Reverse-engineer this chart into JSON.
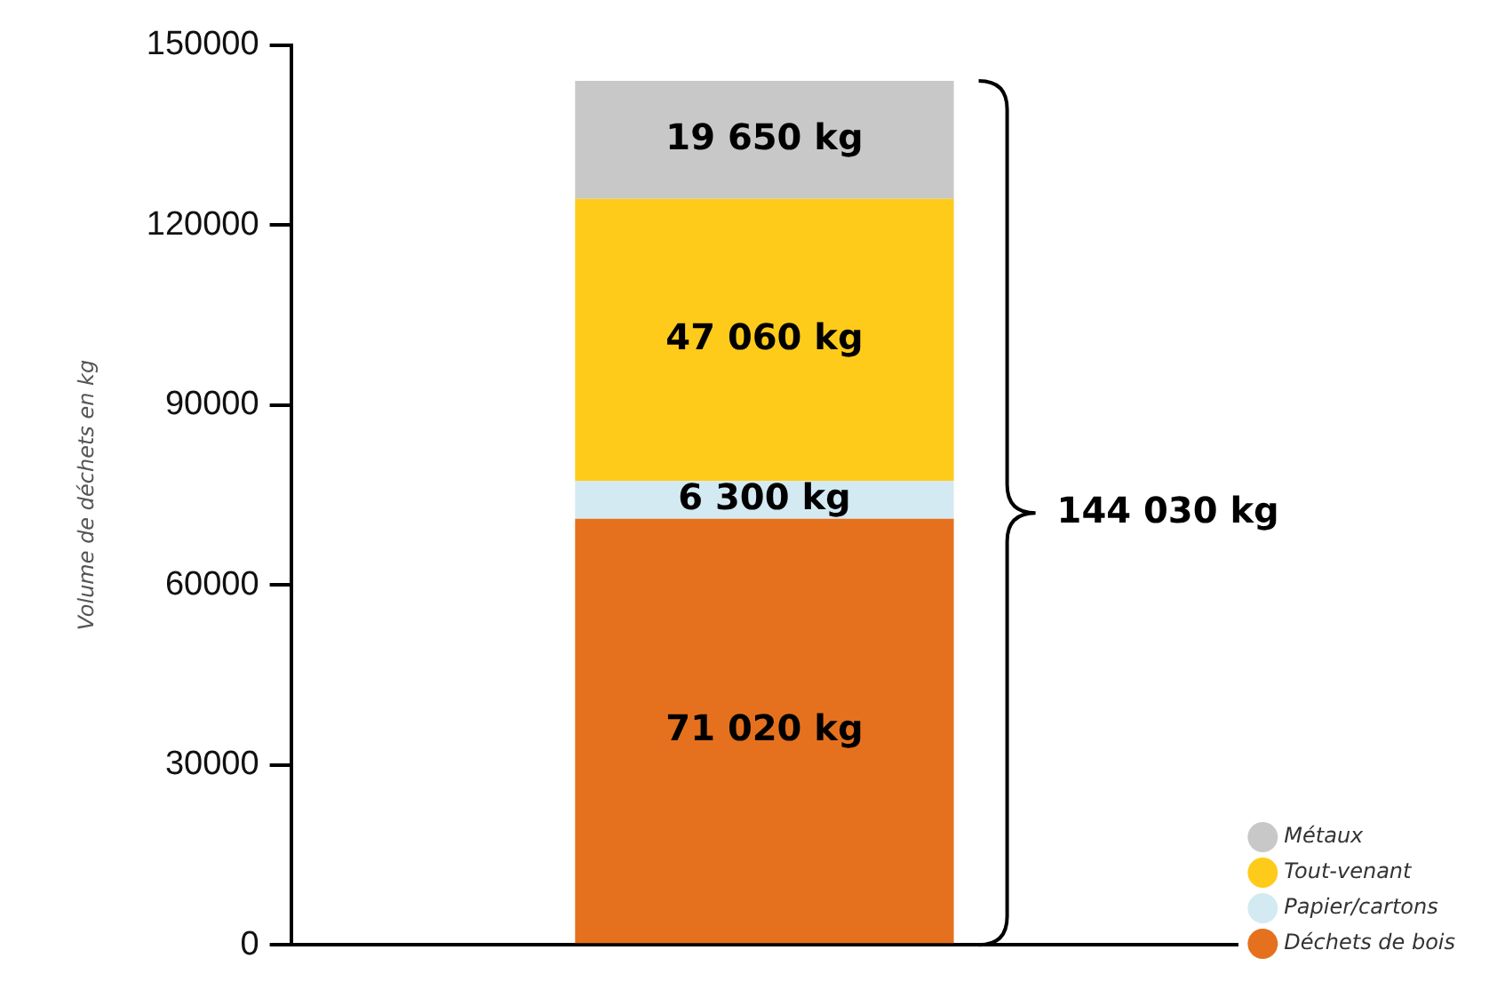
{
  "chart_data": {
    "type": "bar",
    "ylabel": "Volume de déchets en kg",
    "categories": [
      null
    ],
    "stacked": true,
    "series": [
      {
        "name": "Déchets de bois",
        "color": "#e5711e",
        "values": [
          71020
        ],
        "value_labels": [
          "71 020 kg"
        ]
      },
      {
        "name": "Papier/cartons",
        "color": "#d4eaf2",
        "values": [
          6300
        ],
        "value_labels": [
          "6 300 kg"
        ]
      },
      {
        "name": "Tout-venant",
        "color": "#ffcb1a",
        "values": [
          47060
        ],
        "value_labels": [
          "47 060 kg"
        ]
      },
      {
        "name": "Métaux",
        "color": "#c8c8c8",
        "values": [
          19650
        ],
        "value_labels": [
          "19 650 kg"
        ]
      }
    ],
    "totals": [
      "144 030 kg"
    ],
    "ylim": [
      0,
      150000
    ],
    "yticks": [
      0,
      30000,
      60000,
      90000,
      120000,
      150000
    ],
    "grid": false,
    "legend": "bottom right",
    "tick_labels": "y"
  }
}
